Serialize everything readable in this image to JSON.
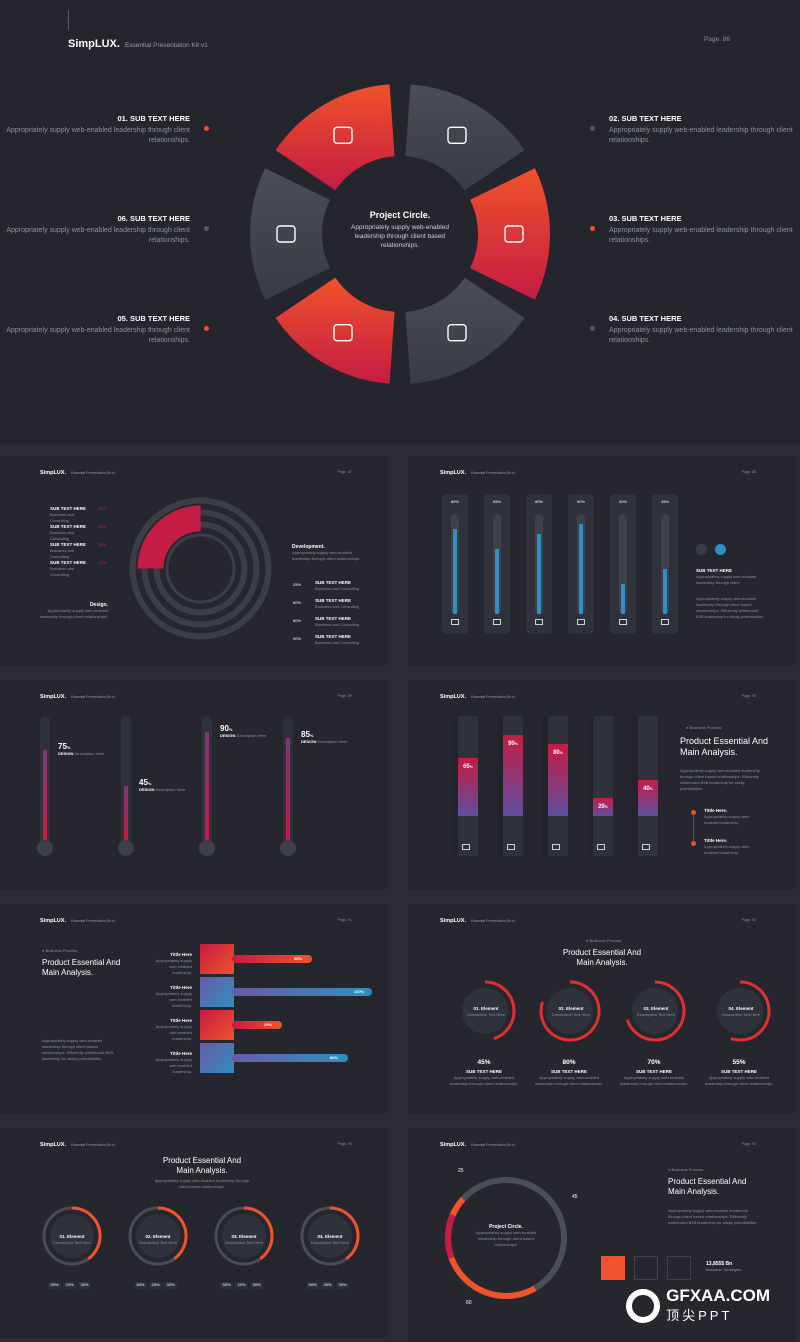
{
  "hero": {
    "brand": "SimpLUX.",
    "subtitle": "Essential Presentation Kit v1",
    "page": "Page.  86",
    "center_title": "Project Circle.",
    "center_text": "Appropriately supply web-enabled leadership through client based relationships.",
    "items": [
      {
        "title": "01. SUB TEXT HERE",
        "text": "Appropriately supply web-enabled leadership through client relationships."
      },
      {
        "title": "02. SUB TEXT HERE",
        "text": "Appropriately supply web-enabled leadership through client relationships."
      },
      {
        "title": "03. SUB TEXT HERE",
        "text": "Appropriately supply web-enabled leadership through client relationships."
      },
      {
        "title": "04. SUB TEXT HERE",
        "text": "Appropriately supply web-enabled leadership through client relationships."
      },
      {
        "title": "05. SUB TEXT HERE",
        "text": "Appropriately supply web-enabled leadership through client relationships."
      },
      {
        "title": "06. SUB TEXT HERE",
        "text": "Appropriately supply web-enabled leadership through client relationships."
      }
    ],
    "icons": [
      "camera-icon",
      "team-icon",
      "image-icon",
      "briefcase-icon",
      "box-icon",
      "send-icon"
    ]
  },
  "brand_small": "SimpLUX.",
  "subtitle_small": "Essential Presentation Kit v1",
  "s1": {
    "page": "Page. 87",
    "sub": "SUB TEXT HERE",
    "sub_desc": "Business and Consulting",
    "left_pcts": [
      "35%",
      "28%",
      "25%",
      "20%"
    ],
    "design_title": "Design.",
    "design_text": "Appropriately supply web-enabled leadership through client relationships.",
    "dev_title": "Development.",
    "dev_text": "Appropriately supply web-enabled leadership through client relationships.",
    "right_pcts": [
      "25%",
      "60%",
      "80%",
      "90%"
    ]
  },
  "s2": {
    "page": "Page. 88",
    "bars": [
      "85%",
      "65%",
      "80%",
      "90%",
      "30%",
      "45%"
    ],
    "sub": "SUB TEXT HERE",
    "text1": "Appropriately supply web-enabled leadership through client",
    "text2": "Appropriately supply web-enabled leadership through client based relationships. Efficiently whiteboard B2B leadership for sticky potentialities."
  },
  "s3": {
    "page": "Page. 89",
    "items": [
      {
        "value": "75",
        "label": "DESIGN",
        "desc": "Description Here"
      },
      {
        "value": "45",
        "label": "DESIGN",
        "desc": "Description Here"
      },
      {
        "value": "90",
        "label": "DESIGN",
        "desc": "Description Here"
      },
      {
        "value": "85",
        "label": "DESIGN",
        "desc": "Description Here"
      }
    ]
  },
  "s4": {
    "page": "Page. 90",
    "values": [
      "65",
      "90",
      "80",
      "20",
      "40"
    ],
    "kicker": "Business Process",
    "title1": "Product Essential And",
    "title2": "Main Analysis.",
    "text": "Appropriately supply web-enabled leadership through client based relationships. Efficiently whiteboard B2B leadership for sticky potentialities.",
    "t1": "Tittle Here.",
    "t1d": "Appropriately supply web-enabled leadership.",
    "t2": "Tittle Here.",
    "t2d": "Appropriately supply web-enabled leadership."
  },
  "s5": {
    "page": "Page. 91",
    "kicker": "Business Process",
    "title1": "Product Essential And",
    "title2": "Main Analysis.",
    "text": "Appropriately supply web-enabled leadership through client based relationships. Efficiently whiteboard B2B leadership for sticky potentialities.",
    "rows": [
      {
        "title": "Tittle Here",
        "desc": "Appropriately supply web enabled leadership.",
        "pct": "50%"
      },
      {
        "title": "Tittle Here",
        "desc": "Appropriately supply web enabled leadership.",
        "pct": "100%"
      },
      {
        "title": "Tittle Here",
        "desc": "Appropriately supply web enabled leadership.",
        "pct": "25%"
      },
      {
        "title": "Tittle Here",
        "desc": "Appropriately supply web enabled leadership.",
        "pct": "80%"
      }
    ]
  },
  "s6": {
    "page": "Page. 92",
    "kicker": "Business Process",
    "title1": "Product Essential And",
    "title2": "Main Analysis.",
    "items": [
      {
        "name": "01. Element",
        "desc": "Description Text Here",
        "pct": "45%",
        "sub": "SUB TEXT HERE",
        "text": "Appropriately supply web-enabled leadership through client relationships."
      },
      {
        "name": "02. Element",
        "desc": "Description Text Here",
        "pct": "80%",
        "sub": "SUB TEXT HERE",
        "text": "Appropriately supply web-enabled leadership through client relationships."
      },
      {
        "name": "03. Element",
        "desc": "Description Text Here",
        "pct": "70%",
        "sub": "SUB TEXT HERE",
        "text": "Appropriately supply web-enabled leadership through client relationships."
      },
      {
        "name": "04. Element",
        "desc": "Description Text Here",
        "pct": "55%",
        "sub": "SUB TEXT HERE",
        "text": "Appropriately supply web-enabled leadership through client relationships."
      }
    ]
  },
  "s7": {
    "page": "Page. 93",
    "title1": "Product Essential And",
    "title2": "Main Analysis.",
    "text": "Appropriately supply web-enabled leadership through client based relationships.",
    "items": [
      {
        "name": "01. Element",
        "desc": "Description Text Here"
      },
      {
        "name": "02. Element",
        "desc": "Description Text Here"
      },
      {
        "name": "03. Element",
        "desc": "Description Text Here"
      },
      {
        "name": "04. Element",
        "desc": "Description Text Here"
      }
    ],
    "pills": [
      "50%",
      "20%",
      "30%"
    ]
  },
  "s8": {
    "page": "Page. 94",
    "n25": "25",
    "n45": "45",
    "n60": "60",
    "center_title": "Project Circle.",
    "center_text": "Appropriately supply web-enabled leadership through client based relationships.",
    "kicker": "Business Process",
    "title1": "Product Essential And",
    "title2": "Main Analysis.",
    "text": "Appropriately supply web-enabled leadership through client based relationships. Efficiently whiteboard B2B leadership for sticky potentialities.",
    "amount": "13,855$ Bn",
    "amount_label": "Business Strategies"
  },
  "watermark": {
    "title": "GFXAA.COM",
    "sub": "顶尖PPT"
  },
  "colors": {
    "accent": "#f0522b",
    "accent2": "#c41c43",
    "blue": "#2f8fc0"
  }
}
